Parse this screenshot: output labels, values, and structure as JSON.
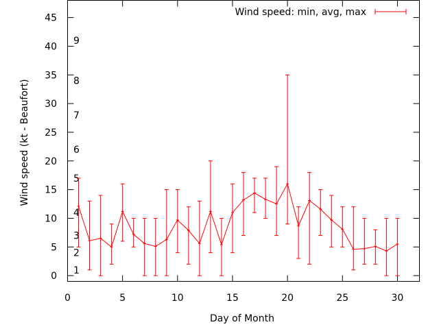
{
  "chart_data": {
    "type": "line",
    "xlabel": "Day of Month",
    "ylabel": "Wind speed (kt - Beaufort)",
    "xlim": [
      0,
      32
    ],
    "ylim": [
      -1,
      48
    ],
    "xticks": [
      0,
      5,
      10,
      15,
      20,
      25,
      30
    ],
    "yticks": [
      0,
      5,
      10,
      15,
      20,
      25,
      30,
      35,
      40,
      45
    ],
    "grid": false,
    "legend_position": "top-right",
    "series": [
      {
        "name": "Wind speed: min, avg, max",
        "color": "#ff0000",
        "x": [
          1,
          2,
          3,
          4,
          5,
          6,
          7,
          8,
          9,
          10,
          11,
          12,
          13,
          14,
          15,
          16,
          17,
          18,
          19,
          20,
          21,
          22,
          23,
          24,
          25,
          26,
          27,
          28,
          29,
          30
        ],
        "avg": [
          12.1,
          6.1,
          6.5,
          5,
          11.2,
          7.2,
          5.6,
          5.1,
          6.3,
          9.7,
          7.9,
          5.6,
          11.2,
          5.4,
          11,
          13.2,
          14.4,
          13.3,
          12.5,
          16,
          8.7,
          13.1,
          11.6,
          9.7,
          8.1,
          4.6,
          4.7,
          5.1,
          4.3,
          5.5
        ],
        "min": [
          5,
          1,
          0,
          2,
          6,
          5,
          0,
          0,
          0,
          4,
          2,
          0,
          4,
          0,
          4,
          7,
          11,
          10,
          7,
          9,
          3,
          2,
          7,
          5,
          5,
          1,
          2,
          2,
          0,
          0
        ],
        "max": [
          17,
          13,
          14,
          9,
          16,
          10,
          10,
          10,
          15,
          15,
          12,
          13,
          20,
          10,
          16,
          18,
          17,
          17,
          19,
          35,
          12,
          18,
          15,
          14,
          12,
          12,
          10,
          8,
          10,
          10
        ]
      }
    ],
    "annotations": [
      {
        "text": "1",
        "y": 1
      },
      {
        "text": "2",
        "y": 4
      },
      {
        "text": "3",
        "y": 7
      },
      {
        "text": "4",
        "y": 11
      },
      {
        "text": "5",
        "y": 17
      },
      {
        "text": "6",
        "y": 22
      },
      {
        "text": "7",
        "y": 28
      },
      {
        "text": "8",
        "y": 34
      },
      {
        "text": "9",
        "y": 41
      }
    ]
  }
}
